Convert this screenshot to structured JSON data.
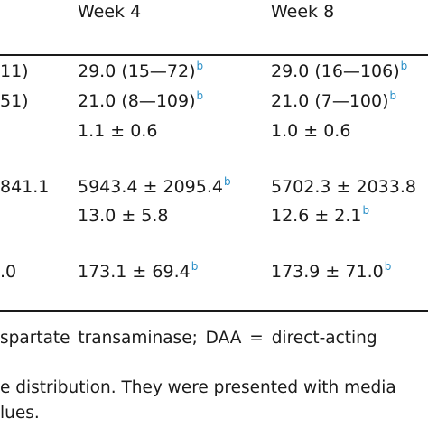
{
  "table": {
    "headers": {
      "week4": "Week 4",
      "week8": "Week 8"
    },
    "rows": [
      {
        "col0": "11)",
        "week4": "29.0 (15—72)",
        "week4_sup": "b",
        "week8": "29.0 (16—106)",
        "week8_sup": "b"
      },
      {
        "col0": "51)",
        "week4": "21.0 (8—109)",
        "week4_sup": "b",
        "week8": "21.0 (7—100)",
        "week8_sup": "b"
      },
      {
        "col0": "",
        "week4": "1.1 ± 0.6",
        "week4_sup": "",
        "week8": "1.0 ± 0.6",
        "week8_sup": ""
      },
      {
        "col0": "841.1",
        "week4": "5943.4 ± 2095.4",
        "week4_sup": "b",
        "week8": "5702.3 ± 2033.8",
        "week8_sup": ""
      },
      {
        "col0": "",
        "week4": "13.0 ± 5.8",
        "week4_sup": "",
        "week8": "12.6 ± 2.1",
        "week8_sup": "b"
      },
      {
        "col0": ".0",
        "week4": "173.1 ± 69.4",
        "week4_sup": "b",
        "week8": "173.9 ± 71.0",
        "week8_sup": "b"
      }
    ]
  },
  "footnotes": {
    "line1": "spartate transaminase; DAA = direct-acting",
    "line2": "e distribution. They were presented with media",
    "line3": "lues."
  },
  "colors": {
    "text": "#1a1a1a",
    "superscript": "#2a8fc7"
  }
}
